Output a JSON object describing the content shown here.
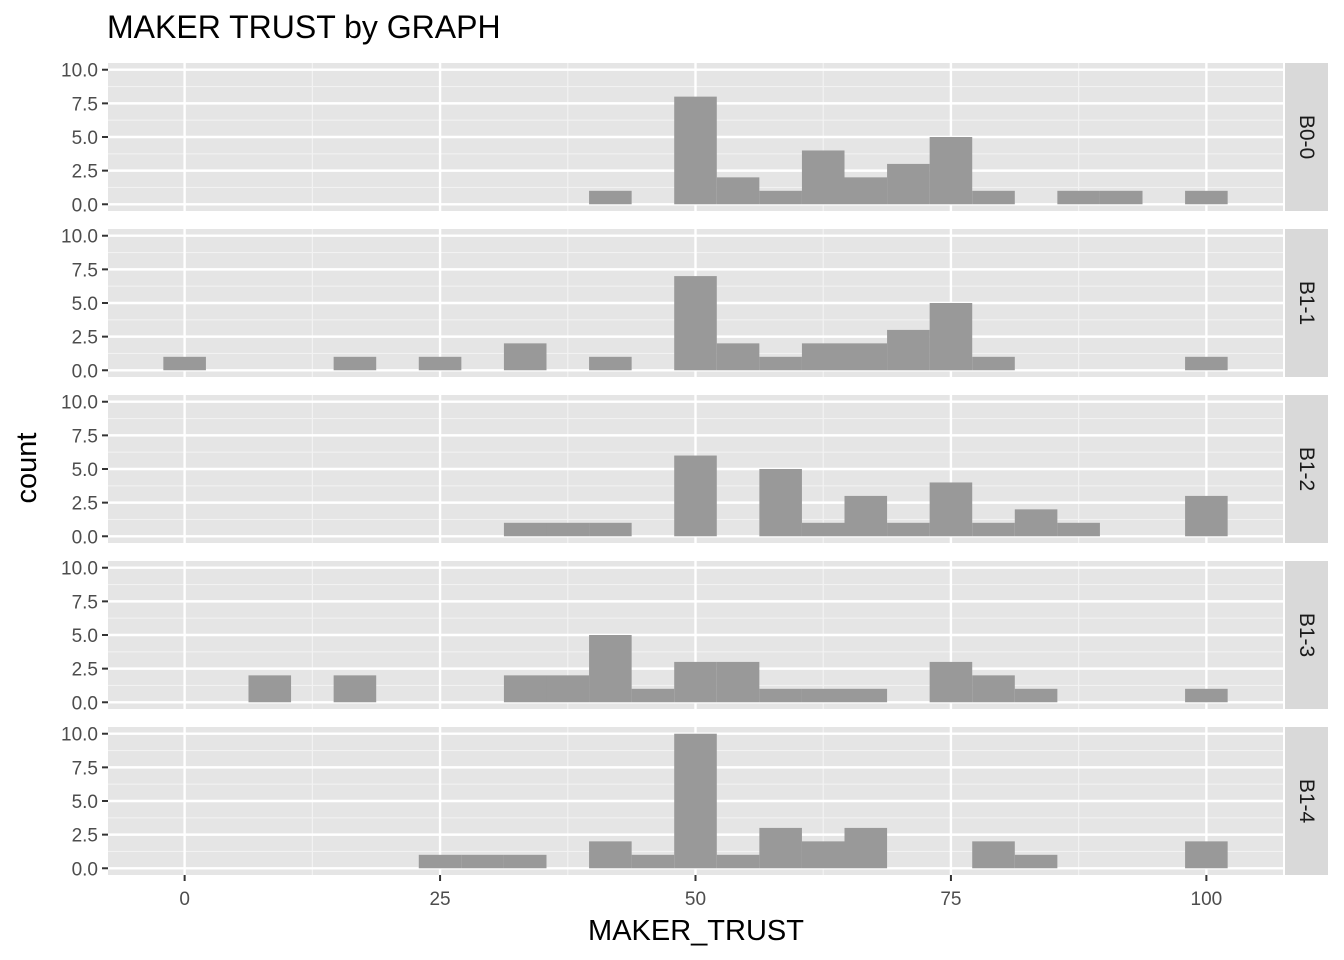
{
  "chart_data": {
    "type": "bar",
    "title": "MAKER TRUST by GRAPH",
    "xlabel": "MAKER_TRUST",
    "ylabel": "count",
    "xlim": [
      -7.5,
      107.5
    ],
    "ylim": [
      -0.5,
      10.5
    ],
    "x_ticks": [
      0,
      25,
      50,
      75,
      100
    ],
    "y_ticks": [
      0,
      2.5,
      5,
      7.5,
      10
    ],
    "y_tick_labels": [
      "0.0",
      "2.5",
      "5.0",
      "7.5",
      "10.0"
    ],
    "bin_width": 4.1667,
    "bin_centers": [
      0,
      4.1667,
      8.3333,
      12.5,
      16.6667,
      20.8333,
      25,
      29.1667,
      33.3333,
      37.5,
      41.6667,
      45.8333,
      50,
      54.1667,
      58.3333,
      62.5,
      66.6667,
      70.8333,
      75,
      79.1667,
      83.3333,
      87.5,
      91.6667,
      95.8333,
      100
    ],
    "bar_color": "#999999",
    "panel_background": "#e5e5e5",
    "strip_background": "#d9d9d9",
    "grid": true,
    "facets": [
      {
        "name": "B0-0",
        "counts": [
          0,
          0,
          0,
          0,
          0,
          0,
          0,
          0,
          0,
          0,
          1,
          0,
          8,
          2,
          1,
          4,
          2,
          3,
          5,
          1,
          0,
          1,
          1,
          0,
          1
        ]
      },
      {
        "name": "B1-1",
        "counts": [
          1,
          0,
          0,
          0,
          1,
          0,
          1,
          0,
          2,
          0,
          1,
          0,
          7,
          2,
          1,
          2,
          2,
          3,
          5,
          1,
          0,
          0,
          0,
          0,
          1
        ]
      },
      {
        "name": "B1-2",
        "counts": [
          0,
          0,
          0,
          0,
          0,
          0,
          0,
          0,
          1,
          1,
          1,
          0,
          6,
          0,
          5,
          1,
          3,
          1,
          4,
          1,
          2,
          1,
          0,
          0,
          3
        ]
      },
      {
        "name": "B1-3",
        "counts": [
          0,
          0,
          2,
          0,
          2,
          0,
          0,
          0,
          2,
          2,
          5,
          1,
          3,
          3,
          1,
          1,
          1,
          0,
          3,
          2,
          1,
          0,
          0,
          0,
          1
        ]
      },
      {
        "name": "B1-4",
        "counts": [
          0,
          0,
          0,
          0,
          0,
          0,
          1,
          1,
          1,
          0,
          2,
          1,
          10,
          1,
          3,
          2,
          3,
          0,
          0,
          2,
          1,
          0,
          0,
          0,
          2
        ]
      }
    ]
  }
}
